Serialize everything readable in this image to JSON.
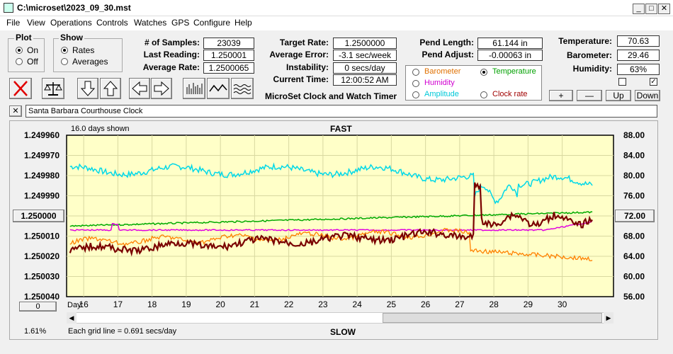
{
  "window": {
    "title": "C:\\microset\\2023_09_30.mst",
    "min": "_",
    "max": "□",
    "close": "✕"
  },
  "menu": [
    "File",
    "View",
    "Operations",
    "Controls",
    "Watches",
    "GPS",
    "Configure",
    "Help"
  ],
  "plot": {
    "title": "Plot",
    "on": "On",
    "off": "Off"
  },
  "show": {
    "title": "Show",
    "rates": "Rates",
    "averages": "Averages"
  },
  "stats": {
    "samples_label": "# of Samples:",
    "samples": "23039",
    "last_label": "Last Reading:",
    "last": "1.250001",
    "avg_label": "Average Rate:",
    "avg": "1.2500065"
  },
  "rate": {
    "target_label": "Target Rate:",
    "target": "1.2500000",
    "error_label": "Average Error:",
    "error": "-3.1 sec/week",
    "instab_label": "Instability:",
    "instab": "0 secs/day",
    "time_label": "Current Time:",
    "time": "12:00:52 AM"
  },
  "app_name": "MicroSet Clock and Watch Timer",
  "pend": {
    "length_label": "Pend Length:",
    "length": "61.144 in",
    "adjust_label": "Pend Adjust:",
    "adjust": "-0.00063 in"
  },
  "aux": {
    "barometer": "Barometer",
    "temperature": "Temperature",
    "humidity": "Humidity",
    "amplitude": "Amplitude",
    "clockrate": "Clock rate"
  },
  "env": {
    "temp_label": "Temperature:",
    "temp": "70.63",
    "baro_label": "Barometer:",
    "baro": "29.46",
    "hum_label": "Humidity:",
    "hum": "63%"
  },
  "adjust_buttons": {
    "plus": "+",
    "minus": "—",
    "up": "Up",
    "down": "Down"
  },
  "clock_name": "Santa Barbara Courthouse Clock",
  "clear_x": "✕",
  "chart_data": {
    "type": "line",
    "days_shown": "16.0 days shown",
    "top_label": "FAST",
    "bottom_label": "SLOW",
    "day_label": "Day:",
    "grid_note": "Each grid line = 0.691 secs/day",
    "percent": "1.61%",
    "left_center_value": "1.250000",
    "right_center_value": "72.00",
    "zero_button": "0",
    "x_ticks": [
      "16",
      "17",
      "18",
      "19",
      "20",
      "21",
      "22",
      "23",
      "24",
      "25",
      "26",
      "27",
      "28",
      "29",
      "30"
    ],
    "y_left_ticks": [
      "1.249960",
      "1.249970",
      "1.249980",
      "1.249990",
      "",
      "1.250010",
      "1.250020",
      "1.250030",
      "1.250040"
    ],
    "y_right_ticks": [
      "88.00",
      "84.00",
      "80.00",
      "76.00",
      "",
      "68.00",
      "64.00",
      "60.00",
      "56.00"
    ],
    "series_colors": {
      "rate": "#7a0000",
      "temperature": "#00d8e8",
      "humidity": "#e000e0",
      "barometer": "#ff8000",
      "amplitude": "#00aa00"
    },
    "ylim_left": [
      1.24996,
      1.25004
    ],
    "ylim_right": [
      56,
      88
    ],
    "xlim": [
      15.5,
      31.5
    ]
  }
}
